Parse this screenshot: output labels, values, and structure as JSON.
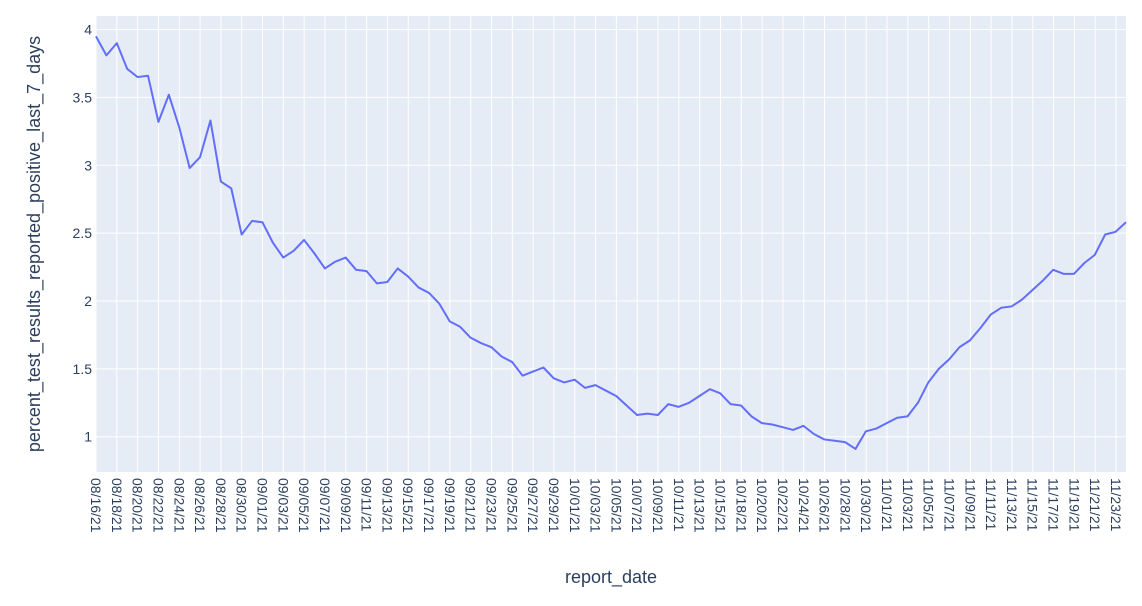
{
  "chart_data": {
    "type": "line",
    "xlabel": "report_date",
    "ylabel": "percent_test_results_reported_positive_last_7_days",
    "ylim": [
      0.74,
      4.1
    ],
    "grid": true,
    "colors": {
      "line": "#636efa",
      "plot_bg": "#e5ecf6",
      "grid": "#ffffff",
      "text": "#2a3f5f"
    },
    "yticks": [
      1,
      1.5,
      2,
      2.5,
      3,
      3.5,
      4
    ],
    "xticks": [
      "08/16/21",
      "08/18/21",
      "08/20/21",
      "08/22/21",
      "08/24/21",
      "08/26/21",
      "08/28/21",
      "08/30/21",
      "09/01/21",
      "09/03/21",
      "09/05/21",
      "09/07/21",
      "09/09/21",
      "09/11/21",
      "09/13/21",
      "09/15/21",
      "09/17/21",
      "09/19/21",
      "09/21/21",
      "09/23/21",
      "09/25/21",
      "09/27/21",
      "09/29/21",
      "10/01/21",
      "10/03/21",
      "10/05/21",
      "10/07/21",
      "10/09/21",
      "10/11/21",
      "10/13/21",
      "10/15/21",
      "10/18/21",
      "10/20/21",
      "10/22/21",
      "10/24/21",
      "10/26/21",
      "10/28/21",
      "10/30/21",
      "11/01/21",
      "11/03/21",
      "11/05/21",
      "11/07/21",
      "11/09/21",
      "11/11/21",
      "11/13/21",
      "11/15/21",
      "11/17/21",
      "11/19/21",
      "11/21/21",
      "11/23/21"
    ],
    "series": [
      {
        "values": [
          3.95,
          3.81,
          3.9,
          3.71,
          3.65,
          3.66,
          3.32,
          3.52,
          3.28,
          2.98,
          3.06,
          3.33,
          2.88,
          2.83,
          2.49,
          2.59,
          2.58,
          2.43,
          2.32,
          2.37,
          2.45,
          2.35,
          2.24,
          2.29,
          2.32,
          2.23,
          2.22,
          2.13,
          2.14,
          2.24,
          2.18,
          2.1,
          2.06,
          1.98,
          1.85,
          1.81,
          1.73,
          1.69,
          1.66,
          1.59,
          1.55,
          1.45,
          1.48,
          1.51,
          1.43,
          1.4,
          1.42,
          1.36,
          1.38,
          1.34,
          1.3,
          1.23,
          1.16,
          1.17,
          1.16,
          1.24,
          1.22,
          1.25,
          1.3,
          1.35,
          1.32,
          1.24,
          1.23,
          1.15,
          1.1,
          1.09,
          1.07,
          1.05,
          1.08,
          1.02,
          0.98,
          0.97,
          0.96,
          0.91,
          1.04,
          1.06,
          1.1,
          1.14,
          1.15,
          1.25,
          1.4,
          1.5,
          1.57,
          1.66,
          1.71,
          1.8,
          1.9,
          1.95,
          1.96,
          2.01,
          2.08,
          2.15,
          2.23,
          2.2,
          2.2,
          2.28,
          2.34,
          2.49,
          2.51,
          2.58
        ]
      }
    ]
  }
}
